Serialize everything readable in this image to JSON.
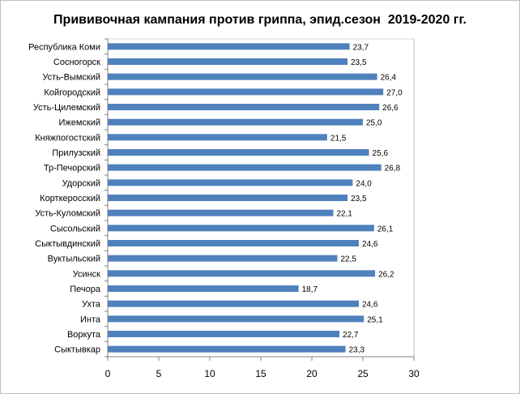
{
  "chart_data": {
    "type": "bar",
    "orientation": "horizontal",
    "title": "Прививочная кампания против гриппа, эпид.сезон  2019-2020 гг.",
    "xlabel": "",
    "ylabel": "",
    "categories": [
      "Республика Коми",
      "Сосногорск",
      "Усть-Вымский",
      "Койгородский",
      "Усть-Цилемский",
      "Ижемский",
      "Княжпогостский",
      "Прилузский",
      "Тр-Печорский",
      "Удорский",
      "Корткеросский",
      "Усть-Куломский",
      "Сысольский",
      "Сыктывдинский",
      "Вуктыльский",
      "Усинск",
      "Печора",
      "Ухта",
      "Инта",
      "Воркута",
      "Сыктывкар"
    ],
    "values": [
      23.7,
      23.5,
      26.4,
      27.0,
      26.6,
      25.0,
      21.5,
      25.6,
      26.8,
      24.0,
      23.5,
      22.1,
      26.1,
      24.6,
      22.5,
      26.2,
      18.7,
      24.6,
      25.1,
      22.7,
      23.3
    ],
    "value_labels": [
      "23,7",
      "23,5",
      "26,4",
      "27,0",
      "26,6",
      "25,0",
      "21,5",
      "25,6",
      "26,8",
      "24,0",
      "23,5",
      "22,1",
      "26,1",
      "24,6",
      "22,5",
      "26,2",
      "18,7",
      "24,6",
      "25,1",
      "22,7",
      "23,3"
    ],
    "xlim": [
      0,
      30
    ],
    "xticks": [
      0,
      5,
      10,
      15,
      20,
      25,
      30
    ],
    "grid": false,
    "legend": "none",
    "bar_color": "#4f81bd"
  }
}
